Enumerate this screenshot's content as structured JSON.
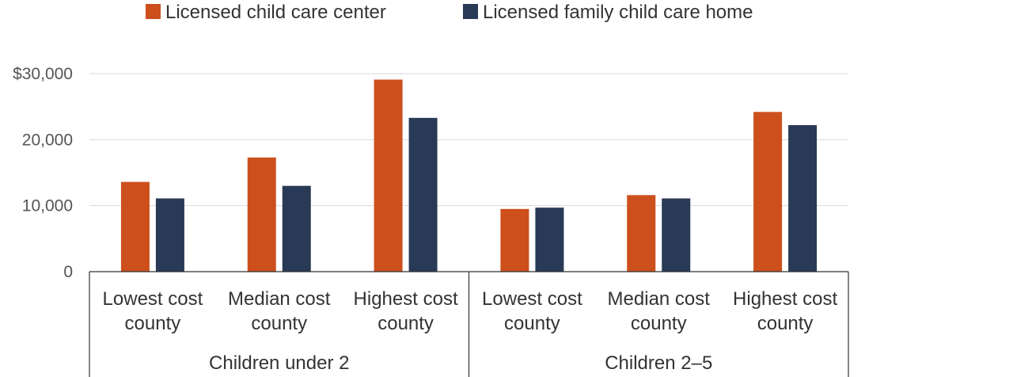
{
  "chart_data": {
    "type": "bar",
    "legend_position": "top",
    "grid": true,
    "ylim": [
      0,
      30000
    ],
    "yticks": [
      {
        "value": 0,
        "label": "0"
      },
      {
        "value": 10000,
        "label": "10,000"
      },
      {
        "value": 20000,
        "label": "20,000"
      },
      {
        "value": 30000,
        "label": "$30,000"
      }
    ],
    "groups": [
      {
        "label": "Children under 2",
        "categories": [
          {
            "line1": "Lowest cost",
            "line2": "county"
          },
          {
            "line1": "Median cost",
            "line2": "county"
          },
          {
            "line1": "Highest cost",
            "line2": "county"
          }
        ]
      },
      {
        "label": "Children 2–5",
        "categories": [
          {
            "line1": "Lowest cost",
            "line2": "county"
          },
          {
            "line1": "Median cost",
            "line2": "county"
          },
          {
            "line1": "Highest cost",
            "line2": "county"
          }
        ]
      }
    ],
    "series": [
      {
        "name": "Licensed child care center",
        "color": "#cc4f1c",
        "values": [
          13600,
          17300,
          29100,
          9500,
          11600,
          24200
        ]
      },
      {
        "name": "Licensed family child care home",
        "color": "#283a55",
        "values": [
          11100,
          13000,
          23300,
          9700,
          11100,
          22200
        ]
      }
    ]
  }
}
